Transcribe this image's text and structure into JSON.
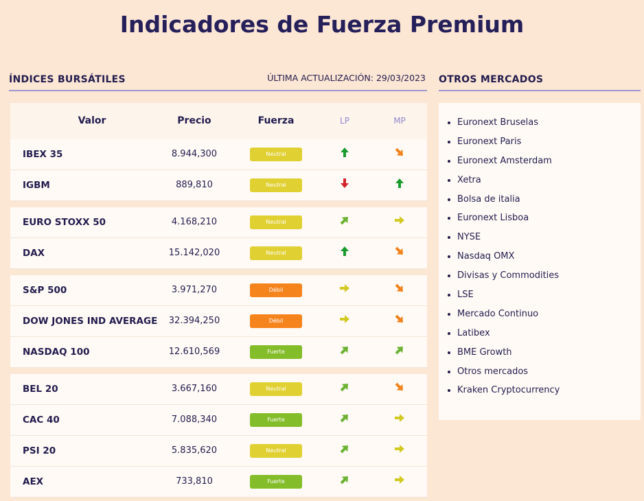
{
  "header": {
    "title": "Indicadores de Fuerza Premium"
  },
  "indices": {
    "heading": "ÍNDICES BURSÁTILES",
    "updated": "ÚLTIMA ACTUALIZACIÓN: 29/03/2023",
    "table": {
      "columns": [
        "Valor",
        "Precio",
        "Fuerza",
        "LP",
        "MP"
      ],
      "groups": [
        [
          {
            "name": "IBEX 35",
            "price": "8.944,300",
            "strength": "Neutral",
            "lp": "up",
            "mp": "down-right"
          },
          {
            "name": "IGBM",
            "price": "889,810",
            "strength": "Neutral",
            "lp": "down",
            "mp": "up"
          }
        ],
        [
          {
            "name": "EURO STOXX 50",
            "price": "4.168,210",
            "strength": "Neutral",
            "lp": "up-right",
            "mp": "right"
          },
          {
            "name": "DAX",
            "price": "15.142,020",
            "strength": "Neutral",
            "lp": "up",
            "mp": "down-right"
          }
        ],
        [
          {
            "name": "S&P 500",
            "price": "3.971,270",
            "strength": "Débil",
            "lp": "right",
            "mp": "down-right"
          },
          {
            "name": "DOW JONES IND AVERAGE",
            "price": "32.394,250",
            "strength": "Débil",
            "lp": "right",
            "mp": "down-right"
          },
          {
            "name": "NASDAQ 100",
            "price": "12.610,569",
            "strength": "Fuerte",
            "lp": "up-right",
            "mp": "up-right"
          }
        ],
        [
          {
            "name": "BEL 20",
            "price": "3.667,160",
            "strength": "Neutral",
            "lp": "up-right",
            "mp": "down-right"
          },
          {
            "name": "CAC 40",
            "price": "7.088,340",
            "strength": "Fuerte",
            "lp": "up-right",
            "mp": "right"
          },
          {
            "name": "PSI 20",
            "price": "5.835,620",
            "strength": "Neutral",
            "lp": "up-right",
            "mp": "right"
          },
          {
            "name": "AEX",
            "price": "733,810",
            "strength": "Fuerte",
            "lp": "up-right",
            "mp": "right"
          }
        ]
      ]
    }
  },
  "markets": {
    "heading": "OTROS MERCADOS",
    "items": [
      "Euronext Bruselas",
      "Euronext Paris",
      "Euronext Amsterdam",
      "Xetra",
      "Bolsa de italia",
      "Euronext Lisboa",
      "NYSE",
      "Nasdaq OMX",
      "Divisas y Commodities",
      "LSE",
      "Mercado Continuo",
      "Latibex",
      "BME Growth",
      "Otros mercados",
      "Kraken Cryptocurrency"
    ]
  }
}
